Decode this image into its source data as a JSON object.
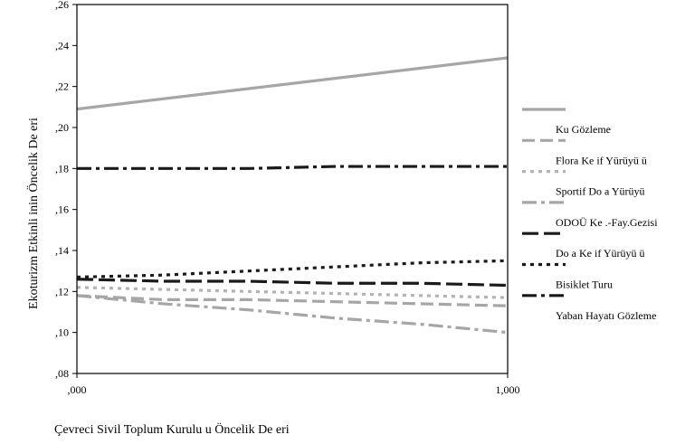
{
  "chart_data": {
    "type": "line",
    "xlabel": "Çevreci Sivil Toplum Kurulu u Öncelik De eri",
    "ylabel": "Ekoturizm Etkinli inin Öncelik De eri",
    "x_ticks": [
      ",000",
      "1,000"
    ],
    "y_ticks": [
      ",08",
      ",10",
      ",12",
      ",14",
      ",16",
      ",18",
      ",20",
      ",22",
      ",24",
      ",26"
    ],
    "xlim": [
      0,
      1
    ],
    "ylim": [
      0.08,
      0.26
    ],
    "grid": false,
    "legend_position": "right",
    "series": [
      {
        "name": "Ku Gözleme",
        "x": [
          0,
          1
        ],
        "y": [
          0.209,
          0.234
        ],
        "color": "#a6a6a6",
        "dash": "solid"
      },
      {
        "name": "Flora Ke if Yürüyü ü",
        "x": [
          0,
          0.2,
          0.4,
          0.6,
          0.8,
          1
        ],
        "y": [
          0.118,
          0.116,
          0.116,
          0.115,
          0.114,
          0.113
        ],
        "color": "#a6a6a6",
        "dash": "dash"
      },
      {
        "name": "Sportif Do a Yürüyü",
        "x": [
          0,
          0.2,
          0.4,
          0.6,
          0.8,
          1
        ],
        "y": [
          0.122,
          0.121,
          0.12,
          0.119,
          0.118,
          0.117
        ],
        "color": "#b3b3b3",
        "dash": "dot"
      },
      {
        "name": "ODOÜ Ke .-Fay.Gezisi",
        "x": [
          0,
          0.2,
          0.4,
          0.6,
          0.8,
          1
        ],
        "y": [
          0.118,
          0.114,
          0.111,
          0.107,
          0.104,
          0.1
        ],
        "color": "#a6a6a6",
        "dash": "dashdot"
      },
      {
        "name": "Do a Ke if Yürüyü ü",
        "x": [
          0,
          0.2,
          0.4,
          0.6,
          0.8,
          1
        ],
        "y": [
          0.126,
          0.125,
          0.125,
          0.124,
          0.124,
          0.123
        ],
        "color": "#1a1a1a",
        "dash": "longdash"
      },
      {
        "name": "Bisiklet Turu",
        "x": [
          0,
          0.2,
          0.4,
          0.6,
          0.8,
          1
        ],
        "y": [
          0.127,
          0.128,
          0.13,
          0.132,
          0.134,
          0.135
        ],
        "color": "#1a1a1a",
        "dash": "dot"
      },
      {
        "name": "Yaban Hayatı Gözleme",
        "x": [
          0,
          0.2,
          0.4,
          0.6,
          0.8,
          1
        ],
        "y": [
          0.18,
          0.18,
          0.18,
          0.181,
          0.181,
          0.181
        ],
        "color": "#1a1a1a",
        "dash": "dashdot"
      }
    ]
  }
}
